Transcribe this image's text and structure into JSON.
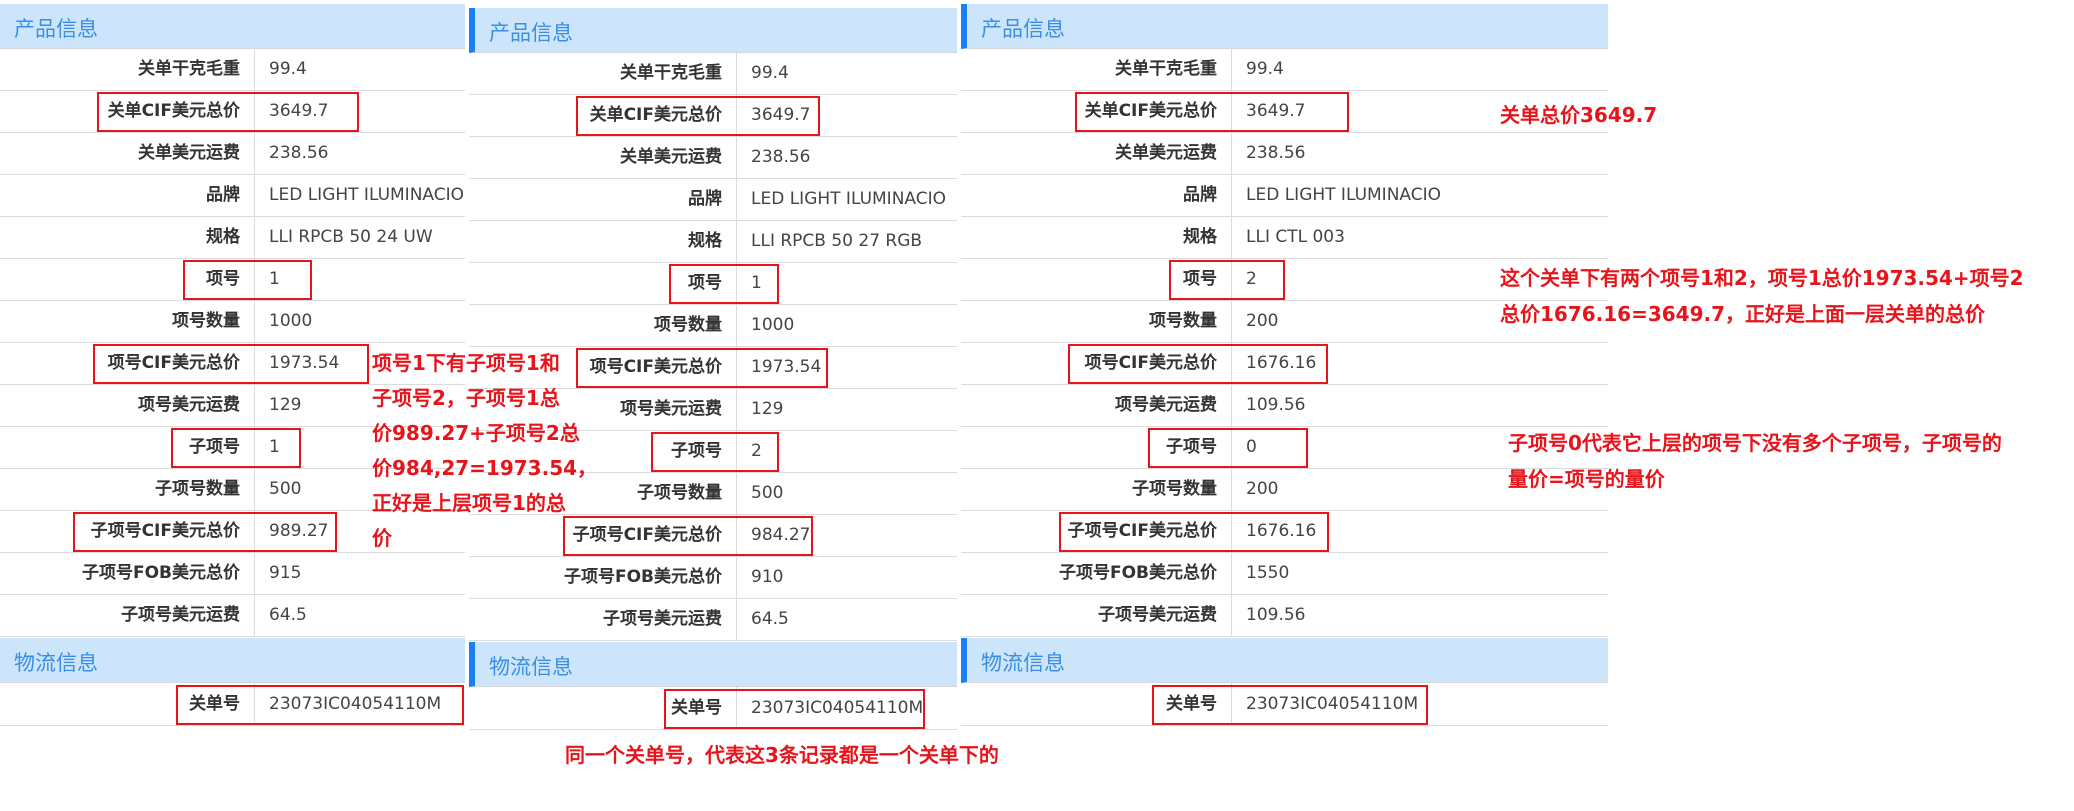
{
  "panels": [
    {
      "product_header": "产品信息",
      "rows": [
        {
          "label": "关单干克毛重",
          "value": "99.4"
        },
        {
          "label": "关单CIF美元总价",
          "value": "3649.7",
          "highlight": true
        },
        {
          "label": "关单美元运费",
          "value": "238.56"
        },
        {
          "label": "品牌",
          "value": "LED LIGHT ILUMINACIO"
        },
        {
          "label": "规格",
          "value": "LLI RPCB 50 24 UW"
        },
        {
          "label": "项号",
          "value": "1",
          "highlight": true
        },
        {
          "label": "项号数量",
          "value": "1000"
        },
        {
          "label": "项号CIF美元总价",
          "value": "1973.54",
          "highlight": true
        },
        {
          "label": "项号美元运费",
          "value": "129"
        },
        {
          "label": "子项号",
          "value": "1",
          "highlight": true
        },
        {
          "label": "子项号数量",
          "value": "500"
        },
        {
          "label": "子项号CIF美元总价",
          "value": "989.27",
          "highlight": true
        },
        {
          "label": "子项号FOB美元总价",
          "value": "915"
        },
        {
          "label": "子项号美元运费",
          "value": "64.5"
        }
      ],
      "logistics_header": "物流信息",
      "logistics_rows": [
        {
          "label": "关单号",
          "value": "23073IC04054110M",
          "highlight": true
        }
      ]
    },
    {
      "product_header": "产品信息",
      "rows": [
        {
          "label": "关单干克毛重",
          "value": "99.4"
        },
        {
          "label": "关单CIF美元总价",
          "value": "3649.7",
          "highlight": true
        },
        {
          "label": "关单美元运费",
          "value": "238.56"
        },
        {
          "label": "品牌",
          "value": "LED LIGHT ILUMINACIO"
        },
        {
          "label": "规格",
          "value": "LLI RPCB 50 27 RGB"
        },
        {
          "label": "项号",
          "value": "1",
          "highlight": true
        },
        {
          "label": "项号数量",
          "value": "1000"
        },
        {
          "label": "项号CIF美元总价",
          "value": "1973.54",
          "highlight": true
        },
        {
          "label": "项号美元运费",
          "value": "129"
        },
        {
          "label": "子项号",
          "value": "2",
          "highlight": true
        },
        {
          "label": "子项号数量",
          "value": "500"
        },
        {
          "label": "子项号CIF美元总价",
          "value": "984.27",
          "highlight": true
        },
        {
          "label": "子项号FOB美元总价",
          "value": "910"
        },
        {
          "label": "子项号美元运费",
          "value": "64.5"
        }
      ],
      "logistics_header": "物流信息",
      "logistics_rows": [
        {
          "label": "关单号",
          "value": "23073IC04054110M",
          "highlight": true
        }
      ]
    },
    {
      "product_header": "产品信息",
      "rows": [
        {
          "label": "关单干克毛重",
          "value": "99.4"
        },
        {
          "label": "关单CIF美元总价",
          "value": "3649.7",
          "highlight": true
        },
        {
          "label": "关单美元运费",
          "value": "238.56"
        },
        {
          "label": "品牌",
          "value": "LED LIGHT ILUMINACIO"
        },
        {
          "label": "规格",
          "value": "LLI CTL 003"
        },
        {
          "label": "项号",
          "value": "2",
          "highlight": true
        },
        {
          "label": "项号数量",
          "value": "200"
        },
        {
          "label": "项号CIF美元总价",
          "value": "1676.16",
          "highlight": true
        },
        {
          "label": "项号美元运费",
          "value": "109.56"
        },
        {
          "label": "子项号",
          "value": "0",
          "highlight": true
        },
        {
          "label": "子项号数量",
          "value": "200"
        },
        {
          "label": "子项号CIF美元总价",
          "value": "1676.16",
          "highlight": true
        },
        {
          "label": "子项号FOB美元总价",
          "value": "1550"
        },
        {
          "label": "子项号美元运费",
          "value": "109.56"
        }
      ],
      "logistics_header": "物流信息",
      "logistics_rows": [
        {
          "label": "关单号",
          "value": "23073IC04054110M",
          "highlight": true
        }
      ]
    }
  ],
  "annotations": {
    "subitem_sum": [
      "项号1下有子项号1和",
      "子项号2，子项号1总",
      "价989.27+子项号2总",
      "价984,27=1973.54，",
      "正好是上层项号1的总",
      "价"
    ],
    "declaration_total": [
      "关单总价3649.7"
    ],
    "item_sum": [
      "这个关单下有两个项号1和2，项号1总价1973.54+项号2",
      "总价1676.16=3649.7，正好是上面一层关单的总价"
    ],
    "subitem_zero": [
      "子项号0代表它上层的项号下没有多个子项号，子项号的",
      "量价=项号的量价"
    ],
    "same_declaration": [
      "同一个关单号，代表这3条记录都是一个关单下的"
    ]
  },
  "colors": {
    "header_bg": "#cce5fb",
    "header_text": "#3a8ee6",
    "accent_bar": "#1a7ff0",
    "annotation_red": "#e8141b"
  }
}
